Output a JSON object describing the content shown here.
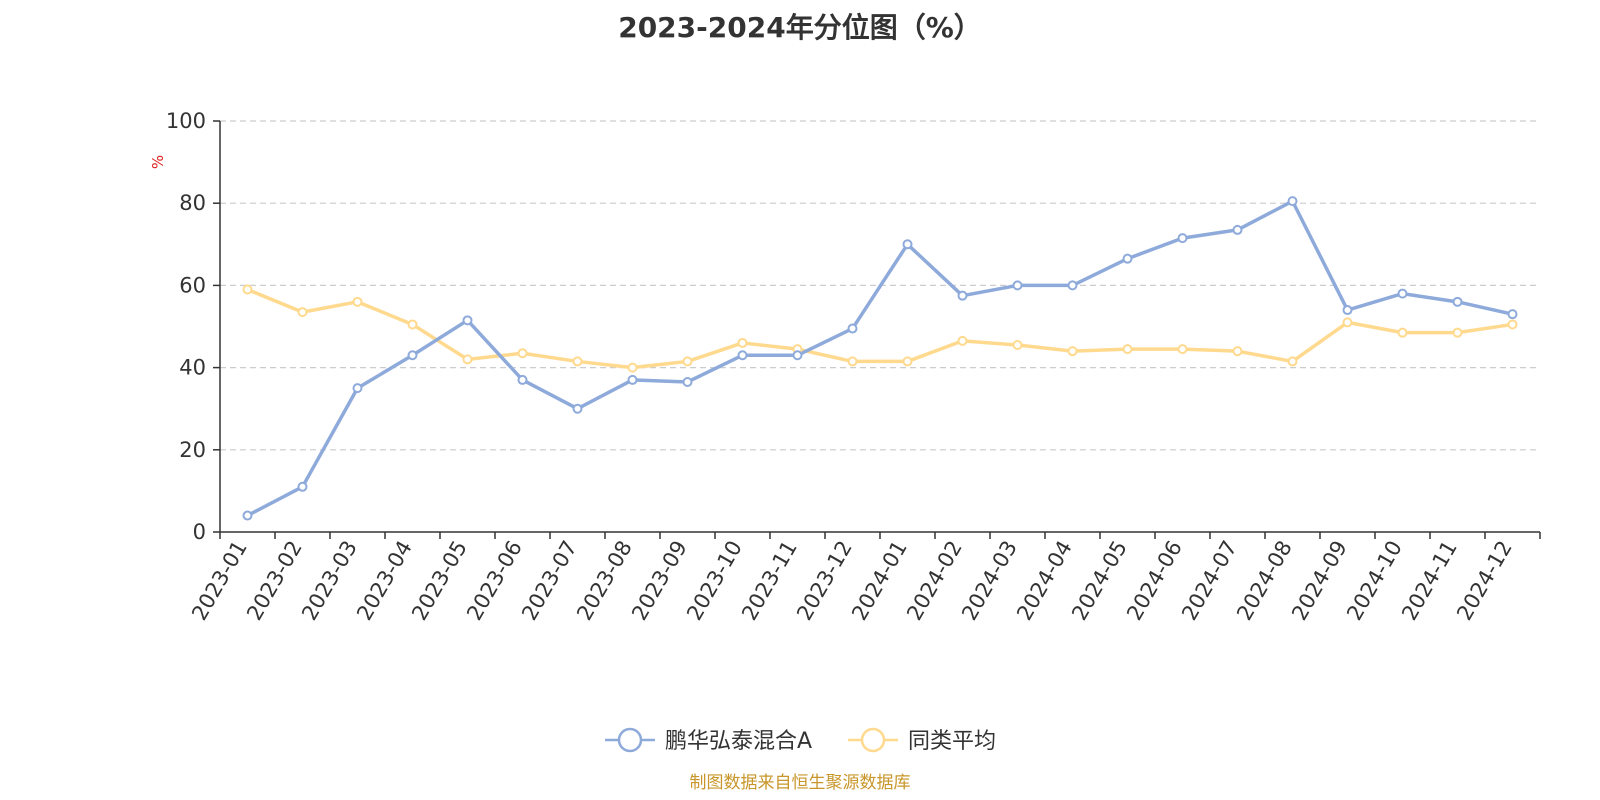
{
  "chart_data": {
    "type": "line",
    "title": "2023-2024年分位图（%）",
    "ylabel": "%",
    "ylim": [
      0,
      100
    ],
    "yticks": [
      0,
      20,
      40,
      60,
      80,
      100
    ],
    "grid": true,
    "legend_position": "bottom",
    "categories": [
      "2023-01",
      "2023-02",
      "2023-03",
      "2023-04",
      "2023-05",
      "2023-06",
      "2023-07",
      "2023-08",
      "2023-09",
      "2023-10",
      "2023-11",
      "2023-12",
      "2024-01",
      "2024-02",
      "2024-03",
      "2024-04",
      "2024-05",
      "2024-06",
      "2024-07",
      "2024-08",
      "2024-09",
      "2024-10",
      "2024-11",
      "2024-12"
    ],
    "series": [
      {
        "name": "鹏华弘泰混合A",
        "color": "#8eaadb",
        "values": [
          4,
          11,
          35,
          43,
          51.5,
          37,
          30,
          37,
          36.5,
          43,
          43,
          49.5,
          70,
          57.5,
          60,
          60,
          66.5,
          71.5,
          73.5,
          80.5,
          54,
          58,
          56,
          53
        ]
      },
      {
        "name": "同类平均",
        "color": "#ffd98e",
        "values": [
          59,
          53.5,
          56,
          50.5,
          42,
          43.5,
          41.5,
          40,
          41.5,
          46,
          44.5,
          41.5,
          41.5,
          46.5,
          45.5,
          44,
          44.5,
          44.5,
          44,
          41.5,
          51,
          48.5,
          48.5,
          50.5
        ]
      }
    ]
  },
  "source_note": "制图数据来自恒生聚源数据库"
}
